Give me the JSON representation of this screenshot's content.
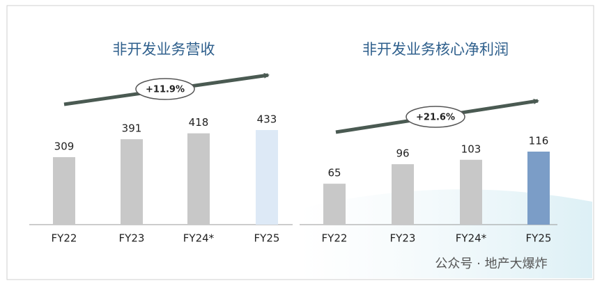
{
  "chart_data": [
    {
      "type": "bar",
      "title": "非开发业务营收",
      "annotation": "+11.9%",
      "categories": [
        "FY22",
        "FY23",
        "FY24*",
        "FY25"
      ],
      "values": [
        309,
        391,
        418,
        433
      ],
      "colors": [
        "#c8c8c8",
        "#c8c8c8",
        "#c8c8c8",
        "#dde9f6"
      ]
    },
    {
      "type": "bar",
      "title": "非开发业务核心净利润",
      "annotation": "+21.6%",
      "categories": [
        "FY22",
        "FY23",
        "FY24*",
        "FY25"
      ],
      "values": [
        65,
        96,
        103,
        116
      ],
      "colors": [
        "#c8c8c8",
        "#c8c8c8",
        "#c8c8c8",
        "#7b9dc7"
      ]
    }
  ],
  "watermark": "公众号 · 地产大爆炸"
}
